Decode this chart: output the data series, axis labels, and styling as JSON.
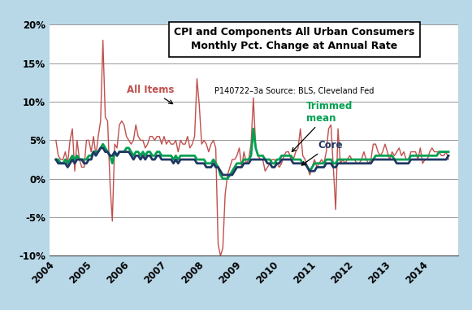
{
  "title_line1": "CPI and Components All Urban Consumers",
  "title_line2": "Monthly Pct. Change at Annual Rate",
  "subtitle": "P140722–3a Source: BLS, Cleveland Fed",
  "bg_outer": "#b8d8e8",
  "bg_inner": "#ffffff",
  "color_all": "#c0504d",
  "color_core": "#1f3864",
  "color_trimmed": "#00a050",
  "ylim": [
    -10,
    20
  ],
  "yticks": [
    -10,
    -5,
    0,
    5,
    10,
    15,
    20
  ],
  "ytick_labels": [
    "-10%",
    "-5%",
    "0%",
    "5%",
    "10%",
    "15%",
    "20%"
  ],
  "xtick_labels": [
    "2004",
    "2005",
    "2006",
    "2007",
    "2008",
    "2009",
    "2010",
    "2011",
    "2012",
    "2013",
    "2014"
  ],
  "all_items": [
    5.0,
    3.0,
    2.5,
    2.5,
    3.5,
    2.0,
    5.0,
    6.5,
    1.0,
    5.0,
    2.5,
    1.5,
    1.5,
    5.0,
    5.0,
    3.5,
    5.5,
    3.0,
    5.5,
    7.5,
    18.0,
    8.0,
    7.5,
    -0.5,
    -5.5,
    4.5,
    4.0,
    7.0,
    7.5,
    7.0,
    5.5,
    5.0,
    4.5,
    5.0,
    7.0,
    5.5,
    5.0,
    5.0,
    4.0,
    4.5,
    5.5,
    5.5,
    5.0,
    5.5,
    5.5,
    4.5,
    5.5,
    4.5,
    5.0,
    4.5,
    4.5,
    5.0,
    3.5,
    5.0,
    4.5,
    4.5,
    5.5,
    4.0,
    4.5,
    5.5,
    13.0,
    9.5,
    4.5,
    5.0,
    4.5,
    3.5,
    4.5,
    5.0,
    4.0,
    -8.5,
    -10.0,
    -9.0,
    -2.0,
    0.5,
    1.5,
    2.5,
    2.5,
    3.0,
    4.0,
    1.5,
    3.5,
    2.0,
    2.5,
    4.5,
    10.5,
    4.0,
    3.0,
    2.5,
    2.5,
    1.0,
    1.5,
    2.0,
    2.5,
    2.5,
    2.0,
    1.5,
    2.0,
    3.0,
    3.5,
    3.5,
    2.5,
    2.5,
    3.5,
    4.0,
    6.5,
    3.0,
    2.5,
    1.5,
    0.5,
    1.5,
    2.5,
    1.5,
    2.0,
    2.5,
    2.0,
    3.5,
    6.5,
    7.0,
    1.5,
    -4.0,
    6.5,
    2.0,
    2.5,
    2.0,
    2.5,
    3.0,
    2.5,
    2.5,
    2.0,
    2.0,
    2.5,
    3.5,
    2.5,
    2.0,
    2.5,
    4.5,
    4.5,
    3.5,
    3.0,
    3.5,
    4.5,
    3.5,
    2.5,
    3.5,
    3.0,
    3.5,
    4.0,
    3.0,
    3.5,
    2.5,
    2.5,
    3.5,
    3.5,
    3.5,
    2.5,
    4.0,
    2.0,
    2.5,
    2.5,
    3.5,
    4.0,
    3.5,
    3.5,
    3.5,
    3.0,
    3.0,
    3.5,
    2.5
  ],
  "core": [
    2.5,
    2.0,
    2.0,
    2.0,
    2.0,
    1.5,
    2.0,
    2.5,
    2.0,
    2.5,
    2.5,
    2.5,
    2.0,
    2.0,
    2.5,
    2.5,
    3.5,
    3.0,
    3.5,
    4.0,
    4.0,
    3.5,
    3.5,
    3.0,
    3.0,
    3.5,
    3.0,
    3.5,
    3.5,
    3.5,
    3.5,
    3.5,
    3.0,
    2.5,
    3.0,
    3.0,
    2.5,
    3.0,
    2.5,
    3.0,
    3.0,
    2.5,
    2.5,
    3.0,
    3.0,
    2.5,
    2.5,
    2.5,
    2.5,
    2.5,
    2.0,
    2.5,
    2.0,
    2.5,
    2.5,
    2.5,
    2.5,
    2.5,
    2.5,
    2.5,
    2.0,
    2.0,
    2.0,
    2.0,
    1.5,
    1.5,
    1.5,
    2.0,
    1.5,
    1.5,
    1.0,
    0.5,
    0.5,
    0.5,
    0.5,
    0.5,
    1.0,
    1.5,
    1.5,
    1.5,
    2.0,
    2.0,
    2.0,
    2.5,
    2.5,
    2.5,
    2.5,
    2.5,
    2.5,
    2.5,
    2.0,
    2.0,
    1.5,
    1.5,
    2.0,
    2.0,
    2.5,
    2.5,
    2.5,
    2.5,
    2.5,
    2.0,
    2.0,
    2.0,
    2.0,
    2.0,
    2.0,
    1.5,
    1.0,
    1.0,
    1.0,
    1.5,
    1.5,
    1.5,
    1.5,
    2.0,
    2.0,
    2.0,
    1.5,
    1.5,
    2.0,
    2.0,
    2.0,
    2.0,
    2.0,
    2.0,
    2.0,
    2.0,
    2.0,
    2.0,
    2.0,
    2.0,
    2.0,
    2.0,
    2.0,
    2.5,
    2.5,
    2.5,
    2.5,
    2.5,
    2.5,
    2.5,
    2.5,
    2.5,
    2.5,
    2.0,
    2.0,
    2.0,
    2.0,
    2.0,
    2.0,
    2.5,
    2.5,
    2.5,
    2.5,
    2.5,
    2.5,
    2.5,
    2.5,
    2.5,
    2.5,
    2.5,
    2.5,
    2.5,
    2.5,
    2.5,
    2.5,
    3.0
  ],
  "trimmed": [
    2.5,
    2.5,
    2.0,
    2.0,
    2.5,
    2.0,
    2.5,
    3.0,
    2.5,
    3.0,
    2.5,
    2.5,
    2.5,
    2.5,
    3.0,
    3.0,
    3.5,
    3.5,
    3.5,
    4.0,
    4.5,
    4.0,
    3.5,
    3.0,
    2.0,
    3.5,
    3.0,
    3.5,
    3.5,
    3.5,
    4.0,
    4.0,
    3.5,
    3.0,
    3.5,
    3.5,
    3.0,
    3.5,
    3.0,
    3.5,
    3.5,
    3.0,
    3.0,
    3.5,
    3.5,
    3.0,
    3.0,
    3.0,
    3.0,
    3.0,
    2.5,
    3.0,
    2.5,
    3.0,
    3.0,
    3.0,
    3.0,
    3.0,
    3.0,
    3.0,
    2.5,
    2.5,
    2.5,
    2.5,
    2.0,
    2.0,
    2.0,
    2.5,
    2.0,
    1.5,
    0.5,
    0.0,
    0.0,
    0.0,
    0.5,
    1.0,
    1.5,
    2.0,
    2.0,
    2.0,
    2.5,
    2.5,
    2.5,
    3.0,
    6.5,
    4.0,
    3.0,
    3.0,
    3.0,
    2.5,
    2.5,
    2.5,
    2.0,
    2.0,
    2.5,
    2.5,
    3.0,
    3.0,
    3.0,
    3.0,
    3.0,
    2.5,
    2.5,
    2.5,
    2.5,
    2.0,
    2.0,
    1.5,
    1.0,
    1.5,
    2.0,
    2.0,
    2.0,
    2.0,
    2.0,
    2.5,
    2.5,
    2.5,
    2.0,
    2.0,
    2.5,
    2.5,
    2.5,
    2.5,
    2.5,
    2.5,
    2.5,
    2.5,
    2.5,
    2.5,
    2.5,
    2.5,
    2.5,
    2.5,
    2.5,
    2.5,
    3.0,
    3.0,
    3.0,
    3.0,
    3.0,
    3.0,
    3.0,
    3.0,
    2.5,
    2.5,
    2.5,
    2.5,
    2.5,
    2.5,
    2.5,
    3.0,
    3.0,
    3.0,
    3.0,
    3.0,
    3.0,
    3.0,
    3.0,
    3.0,
    3.0,
    3.0,
    3.0,
    3.5,
    3.5,
    3.5,
    3.5,
    3.5
  ]
}
